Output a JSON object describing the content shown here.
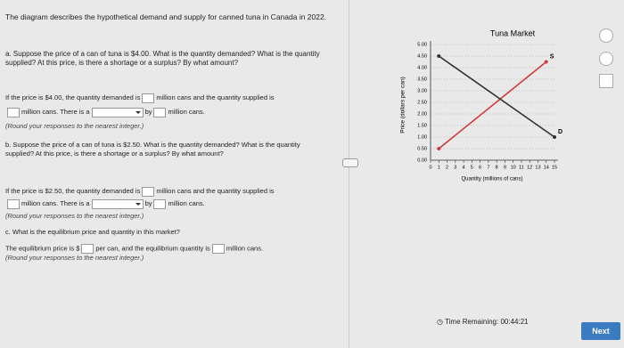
{
  "question": {
    "intro": "The diagram describes the hypothetical demand and supply for canned tuna in Canada in 2022.",
    "part_a": {
      "question": "a. Suppose the price of a can of tuna is $4.00. What is the quantity demanded? What is the quantity supplied? At this price, is there a shortage or a surplus? By what amount?",
      "text_1": "If the price is $4.00, the quantity demanded is",
      "text_2": "million cans and the quantity supplied is",
      "text_3": "million cans. There is a",
      "text_4": "by",
      "text_5": "million cans.",
      "note": "(Round your responses to the nearest integer.)"
    },
    "part_b": {
      "question": "b. Suppose the price of a can of tuna is $2.50. What is the quantity demanded? What is the quantity supplied? At this price, is there a shortage or a surplus? By what amount?",
      "text_1": "If the price is $2.50, the quantity demanded is",
      "text_2": "million cans and the quantity supplied is",
      "text_3": "million cans. There is a",
      "text_4": "by",
      "text_5": "million cans.",
      "note": "(Round your responses to the nearest integer.)"
    },
    "part_c": {
      "question": "c. What is the equilibrium price and quantity in this market?",
      "text_1": "The equilibrium price is $",
      "text_2": "per can, and the equilibrium quantity is",
      "text_3": "million cans.",
      "note": "(Round your responses to the nearest integer.)"
    }
  },
  "graph": {
    "title": "Tuna Market",
    "ylabel": "Price (dollars per can)",
    "xlabel": "Quantity (millions of cans)",
    "xlim": [
      0,
      15
    ],
    "ylim": [
      0,
      5
    ],
    "xticks": [
      0,
      1,
      2,
      3,
      4,
      5,
      6,
      7,
      8,
      9,
      10,
      11,
      12,
      13,
      14,
      15
    ],
    "yticks": [
      {
        "value": 0,
        "label": "0.00"
      },
      {
        "value": 0.5,
        "label": "0.50"
      },
      {
        "value": 1,
        "label": "1.00"
      },
      {
        "value": 1.5,
        "label": "1.50"
      },
      {
        "value": 2,
        "label": "2.00"
      },
      {
        "value": 2.5,
        "label": "2.50"
      },
      {
        "value": 3,
        "label": "3.00"
      },
      {
        "value": 3.5,
        "label": "3.50"
      },
      {
        "value": 4,
        "label": "4.00"
      },
      {
        "value": 4.5,
        "label": "4.50"
      },
      {
        "value": 5,
        "label": "5.00"
      }
    ],
    "series": [
      {
        "name": "S",
        "color": "#d23a3a",
        "x": [
          1,
          14
        ],
        "values": [
          0.5,
          4.25
        ]
      },
      {
        "name": "D",
        "color": "#333333",
        "x": [
          1,
          15
        ],
        "values": [
          4.5,
          1.0
        ]
      }
    ]
  },
  "footer": {
    "timer": "Time Remaining: 00:44:21",
    "next": "Next"
  }
}
